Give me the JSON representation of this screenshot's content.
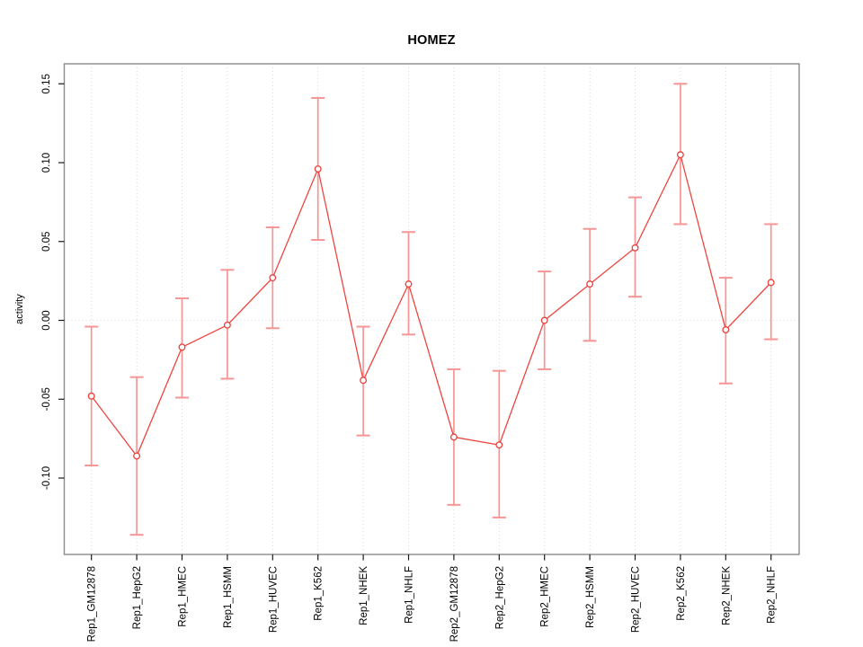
{
  "chart_data": {
    "type": "line",
    "title": "HOMEZ",
    "xlabel": "",
    "ylabel": "activity",
    "legend": "none",
    "grid": "vertical dotted line at every category; horizontal dotted line at y=0",
    "ylim": [
      -0.148,
      0.163
    ],
    "yticks": {
      "values": [
        0.15,
        0.1,
        0.05,
        0.0,
        -0.05,
        -0.1
      ],
      "labels": [
        "0.15",
        "0.10",
        "0.05",
        "0.00",
        "-0.05",
        "-0.10"
      ]
    },
    "categories": [
      "Rep1_GM12878",
      "Rep1_HepG2",
      "Rep1_HMEC",
      "Rep1_HSMM",
      "Rep1_HUVEC",
      "Rep1_K562",
      "Rep1_NHEK",
      "Rep1_NHLF",
      "Rep2_GM12878",
      "Rep2_HepG2",
      "Rep2_HMEC",
      "Rep2_HSMM",
      "Rep2_HUVEC",
      "Rep2_K562",
      "Rep2_NHEK",
      "Rep2_NHLF"
    ],
    "series": [
      {
        "name": "activity",
        "values": [
          -0.048,
          -0.086,
          -0.017,
          -0.003,
          0.027,
          0.096,
          -0.038,
          0.023,
          -0.074,
          -0.079,
          0.0,
          0.023,
          0.046,
          0.105,
          -0.006,
          0.024
        ],
        "ci_low": [
          -0.092,
          -0.136,
          -0.049,
          -0.037,
          -0.005,
          0.051,
          -0.073,
          -0.009,
          -0.117,
          -0.125,
          -0.031,
          -0.013,
          0.015,
          0.061,
          -0.04,
          -0.012
        ],
        "ci_high": [
          -0.004,
          -0.036,
          0.014,
          0.032,
          0.059,
          0.141,
          -0.004,
          0.056,
          -0.031,
          -0.032,
          0.031,
          0.058,
          0.078,
          0.15,
          0.027,
          0.061
        ]
      }
    ],
    "colors": {
      "line": "#ee4540",
      "point_stroke": "#e8403b",
      "point_fill": "#ffffff",
      "errorbar": "#f69595",
      "grid": "#d9d9d9",
      "box": "#8c8c8c",
      "tick": "#1a1a1a",
      "text": "#000000"
    }
  }
}
